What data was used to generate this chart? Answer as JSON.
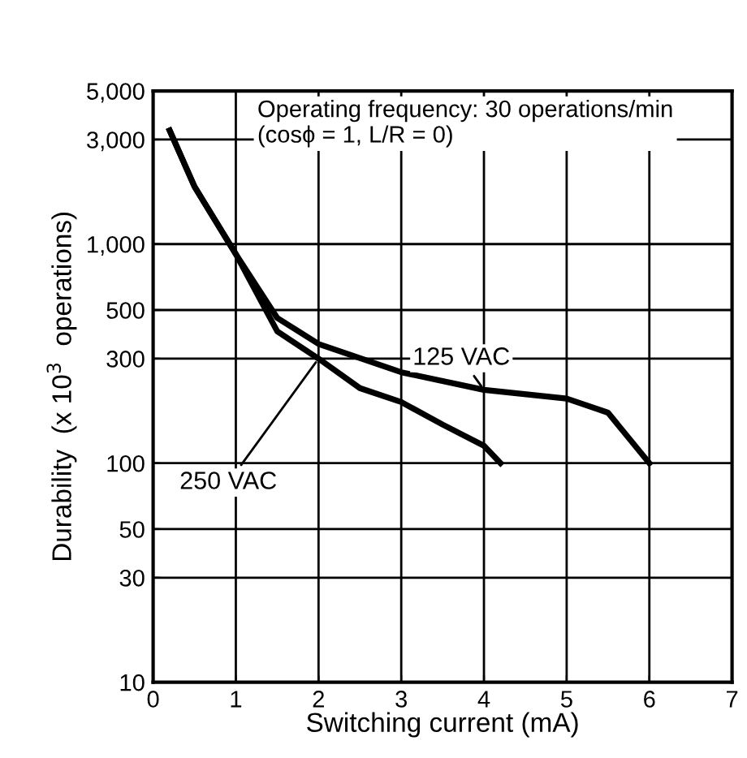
{
  "chart_data": {
    "type": "line",
    "xlabel": "Switching current (mA)",
    "ylabel": "Durability  (x 10$^{3}$  operations)",
    "annotations": [
      "Operating frequency: 30 operations/min\n(cosϕ = 1, L/R = 0)"
    ],
    "series": [
      {
        "name": "125 VAC",
        "color": "#000000",
        "x": [
          0.2,
          0.5,
          1,
          1.5,
          2,
          3,
          4,
          5,
          5.5,
          6
        ],
        "values": [
          3300,
          1830,
          900,
          460,
          350,
          260,
          216,
          197,
          170,
          100
        ]
      },
      {
        "name": "250 VAC",
        "color": "#000000",
        "x": [
          0.2,
          0.5,
          1,
          1.5,
          2,
          2.5,
          3,
          3.5,
          4,
          4.2
        ],
        "values": [
          3300,
          1830,
          900,
          400,
          300,
          220,
          190,
          150,
          120,
          100
        ]
      }
    ],
    "log": "y",
    "xlim": [
      0,
      7
    ],
    "ylim": [
      10,
      5000
    ],
    "xticks": [
      0,
      1,
      2,
      3,
      4,
      5,
      6,
      7
    ],
    "yticks": [
      10,
      30,
      50,
      100,
      300,
      500,
      {
        "value": 1000,
        "label": "1,000"
      },
      {
        "value": 3000,
        "label": "3,000"
      },
      {
        "value": 5000,
        "label": "5,000"
      }
    ],
    "grid": true,
    "legend": false,
    "marker": "none",
    "line_style": "solid"
  }
}
